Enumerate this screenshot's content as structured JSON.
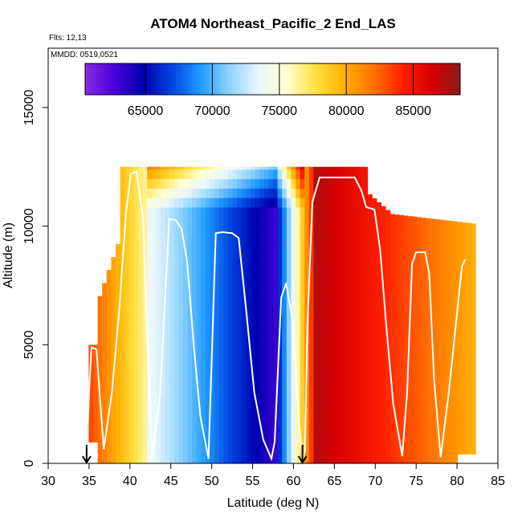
{
  "chart_data": {
    "type": "heatmap",
    "title": "ATOM4 Northeast_Pacific_2 End_LAS",
    "annotations": [
      "Flts: 12,13",
      "MMDD: 0519,0521"
    ],
    "xlabel": "Latitude (deg N)",
    "ylabel": "Altitude (m)",
    "xlim": [
      30,
      85
    ],
    "ylim": [
      0,
      17500
    ],
    "x_ticks": [
      30,
      35,
      40,
      45,
      50,
      55,
      60,
      65,
      70,
      75,
      80,
      85
    ],
    "y_ticks": [
      0,
      5000,
      10000,
      15000
    ],
    "grid": false,
    "colorbar": {
      "location": "top-inside",
      "range": [
        60500,
        88500
      ],
      "ticks": [
        65000,
        70000,
        75000,
        80000,
        85000
      ],
      "palette": [
        "#8a2be2",
        "#4a00d9",
        "#0000b0",
        "#0044e0",
        "#1f9bff",
        "#8fd3ff",
        "#e8f6ff",
        "#ffffd0",
        "#ffe040",
        "#ffb000",
        "#ff7000",
        "#ff2000",
        "#d80000",
        "#8b1a1a"
      ]
    },
    "series": [
      {
        "x": [
          34.7,
          35.0,
          35.3,
          35.9,
          36.8,
          37.8,
          38.7,
          39.5,
          40.1,
          40.8,
          41.6,
          42.7,
          43.7,
          44.8,
          45.6,
          46.3,
          47.0,
          47.8,
          48.6,
          49.6,
          50.5,
          51.3,
          52.5,
          53.3,
          54.2,
          55.2,
          56.3,
          57.3,
          57.7,
          58.5,
          59.1,
          59.9,
          60.6,
          61.1,
          61.4,
          61.7,
          62.3,
          63.2,
          64.5,
          66.0,
          67.5,
          68.3,
          68.9,
          69.4,
          69.9,
          70.6,
          71.3,
          72.2,
          73.3,
          73.9,
          74.5,
          75.0,
          76.1,
          76.6,
          77.2,
          78.0,
          79.0,
          79.9,
          80.6,
          81.0
        ],
        "y": [
          200,
          3000,
          4900,
          4800,
          600,
          3000,
          6500,
          10500,
          12200,
          12300,
          10300,
          200,
          3000,
          10300,
          10250,
          9900,
          8500,
          5000,
          2000,
          200,
          9700,
          9750,
          9700,
          9500,
          6500,
          3000,
          1000,
          200,
          900,
          7000,
          7600,
          6000,
          2000,
          200,
          500,
          5800,
          11000,
          12050,
          12050,
          12050,
          12050,
          11500,
          10800,
          10750,
          10700,
          9000,
          6000,
          2500,
          300,
          3000,
          8400,
          8900,
          8900,
          8000,
          3500,
          250,
          3000,
          6000,
          8300,
          8600
        ],
        "color": "#ffffff"
      }
    ],
    "markers": [
      {
        "type": "arrow-down",
        "x": 34.7
      },
      {
        "type": "arrow-down",
        "x": 61.1
      }
    ]
  }
}
